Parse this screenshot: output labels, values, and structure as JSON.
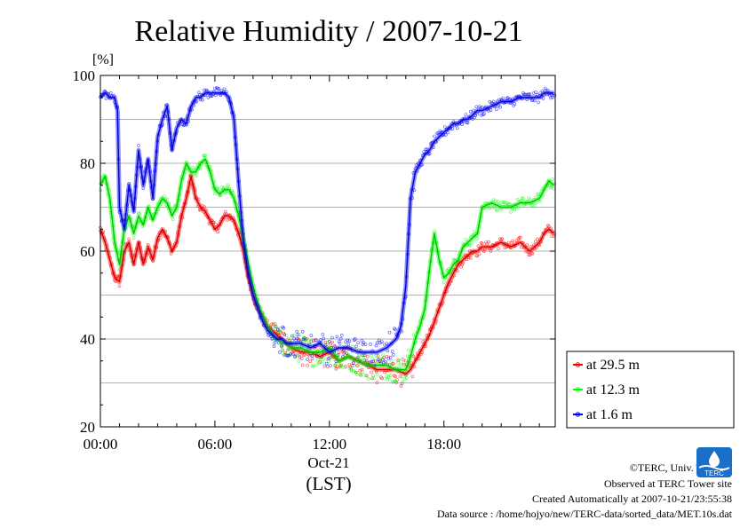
{
  "chart_data": {
    "type": "line",
    "title": "Relative Humidity / 2007-10-21",
    "ylabel": "[%]",
    "xlabel": "(LST)",
    "date_label": "Oct-21",
    "ylim": [
      20,
      100
    ],
    "xlim": [
      0,
      23.83
    ],
    "x_ticks": [
      0,
      6,
      12,
      18
    ],
    "x_tick_labels": [
      "00:00",
      "06:00",
      "12:00",
      "18:00"
    ],
    "y_ticks": [
      20,
      40,
      60,
      80,
      100
    ],
    "y_tick_labels": [
      "20",
      "40",
      "60",
      "80",
      "100"
    ],
    "grid": true,
    "legend_position": "right",
    "series": [
      {
        "name": "at 29.5 m",
        "color": "#ff0000",
        "x": [
          0,
          0.25,
          0.5,
          0.75,
          1,
          1.25,
          1.5,
          1.75,
          2,
          2.25,
          2.5,
          2.75,
          3,
          3.25,
          3.5,
          3.75,
          4,
          4.25,
          4.5,
          4.75,
          5,
          5.25,
          5.5,
          5.75,
          6,
          6.25,
          6.5,
          6.75,
          7,
          7.25,
          7.5,
          7.75,
          8,
          8.25,
          8.5,
          8.75,
          9,
          9.25,
          9.5,
          9.75,
          10,
          10.5,
          11,
          11.5,
          12,
          12.5,
          13,
          13.5,
          14,
          14.5,
          15,
          15.5,
          16,
          16.25,
          16.5,
          16.75,
          17,
          17.25,
          17.5,
          17.75,
          18,
          18.25,
          18.5,
          18.75,
          19,
          19.25,
          19.5,
          19.75,
          20,
          20.5,
          21,
          21.5,
          22,
          22.5,
          23,
          23.25,
          23.5,
          23.75
        ],
        "y": [
          65,
          62,
          58,
          54,
          53,
          60,
          62,
          57,
          62,
          57,
          61,
          58,
          63,
          65,
          63,
          60,
          62,
          68,
          72,
          77,
          72,
          70,
          69,
          67,
          65,
          66,
          68,
          68,
          67,
          64,
          60,
          54,
          50,
          47,
          45,
          43,
          42,
          41,
          40,
          39,
          38,
          37,
          37,
          36,
          37,
          35,
          36,
          35,
          34,
          33,
          33,
          33,
          32,
          33,
          35,
          37,
          39,
          41,
          44,
          47,
          50,
          53,
          55,
          57,
          58,
          59,
          60,
          60,
          61,
          61,
          62,
          61,
          62,
          60,
          62,
          64,
          65,
          64
        ]
      },
      {
        "name": "at 12.3 m",
        "color": "#00ff00",
        "x": [
          0,
          0.25,
          0.5,
          0.75,
          1,
          1.25,
          1.5,
          1.75,
          2,
          2.25,
          2.5,
          2.75,
          3,
          3.25,
          3.5,
          3.75,
          4,
          4.25,
          4.5,
          4.75,
          5,
          5.25,
          5.5,
          5.75,
          6,
          6.25,
          6.5,
          6.75,
          7,
          7.25,
          7.5,
          7.75,
          8,
          8.25,
          8.5,
          8.75,
          9,
          9.25,
          9.5,
          9.75,
          10,
          10.5,
          11,
          11.5,
          12,
          12.5,
          13,
          13.5,
          14,
          14.5,
          15,
          15.5,
          16,
          16.25,
          16.5,
          16.75,
          17,
          17.25,
          17.5,
          17.75,
          18,
          18.25,
          18.5,
          18.75,
          19,
          19.25,
          19.5,
          19.75,
          20,
          20.5,
          21,
          21.5,
          22,
          22.5,
          23,
          23.25,
          23.5,
          23.75
        ],
        "y": [
          75,
          77,
          72,
          62,
          57,
          65,
          68,
          64,
          68,
          66,
          70,
          67,
          70,
          72,
          71,
          68,
          70,
          76,
          80,
          78,
          78,
          80,
          81,
          78,
          74,
          73,
          74,
          74,
          72,
          68,
          63,
          57,
          52,
          48,
          45,
          43,
          41,
          40,
          39,
          39,
          38,
          38,
          37,
          37,
          38,
          35,
          36,
          35,
          34,
          34,
          34,
          33,
          33,
          36,
          40,
          43,
          47,
          56,
          64,
          58,
          54,
          55,
          57,
          58,
          61,
          62,
          63,
          64,
          70,
          71,
          70,
          70,
          71,
          71,
          72,
          74,
          76,
          75
        ]
      },
      {
        "name": "at 1.6 m",
        "color": "#0000ff",
        "x": [
          0,
          0.25,
          0.5,
          0.75,
          0.9,
          1,
          1.25,
          1.5,
          1.75,
          2,
          2.25,
          2.5,
          2.75,
          3,
          3.25,
          3.5,
          3.75,
          4,
          4.25,
          4.5,
          4.75,
          5,
          5.25,
          5.5,
          5.75,
          6,
          6.25,
          6.5,
          6.75,
          7,
          7.25,
          7.5,
          7.75,
          8,
          8.25,
          8.5,
          8.75,
          9,
          9.25,
          9.5,
          9.75,
          10,
          10.5,
          11,
          11.5,
          12,
          12.5,
          13,
          13.5,
          14,
          14.5,
          15,
          15.5,
          15.75,
          16,
          16.25,
          16.5,
          16.75,
          17,
          17.25,
          17.5,
          17.75,
          18,
          18.25,
          18.5,
          18.75,
          19,
          19.25,
          19.5,
          19.75,
          20,
          20.5,
          21,
          21.5,
          22,
          22.5,
          23,
          23.25,
          23.5,
          23.75
        ],
        "y": [
          95,
          96,
          95,
          95,
          92,
          70,
          65,
          75,
          69,
          83,
          75,
          81,
          72,
          86,
          90,
          93,
          83,
          88,
          90,
          89,
          93,
          95,
          95,
          96,
          96,
          96,
          96,
          96,
          95,
          90,
          75,
          62,
          55,
          50,
          47,
          44,
          42,
          41,
          40,
          40,
          39,
          39,
          39,
          38,
          39,
          37,
          38,
          38,
          37,
          37,
          37,
          38,
          40,
          43,
          52,
          72,
          78,
          80,
          82,
          83,
          85,
          86,
          87,
          88,
          89,
          89,
          90,
          90,
          91,
          92,
          92,
          93,
          94,
          94,
          95,
          95,
          95,
          96,
          96,
          96
        ]
      }
    ]
  },
  "credits": {
    "copyright": "©TERC, Univ. Tsukuba",
    "observed": "Observed at TERC Tower site",
    "created": "Created Automatically at 2007-10-21/23:55:38",
    "source": "Data source : /home/hojyo/new/TERC-data/sorted_data/MET.10s.dat"
  },
  "logo": {
    "text": "TERC",
    "color": "#1a6fc9"
  }
}
